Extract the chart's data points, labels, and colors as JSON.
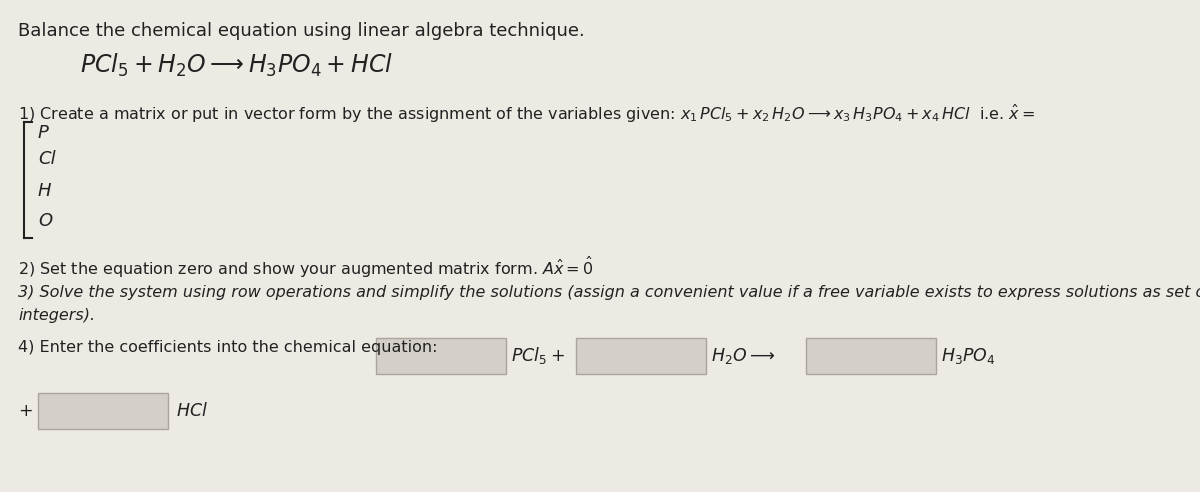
{
  "background_color": "#ede9e3",
  "title_text": "Balance the chemical equation using linear algebra technique.",
  "bracket_labels": [
    "P",
    "Cl",
    "H",
    "O"
  ],
  "box_color": "#d4cfc8",
  "box_border": "#aaa49c",
  "text_color": "#222222",
  "fig_width": 12.0,
  "fig_height": 4.92,
  "dpi": 100
}
